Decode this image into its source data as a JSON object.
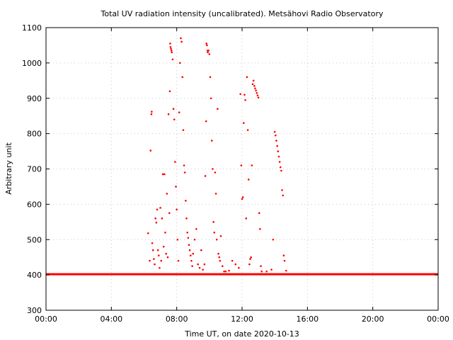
{
  "chart_data": {
    "type": "scatter",
    "title": "Total UV radiation intensity (uncalibrated). Metsähovi Radio Observatory",
    "xlabel": "Time UT, on date 2020-10-13",
    "ylabel": "Arbitrary unit",
    "xlim": [
      0,
      24
    ],
    "ylim": [
      300,
      1100
    ],
    "x_ticks": [
      0,
      4,
      8,
      12,
      16,
      20,
      24
    ],
    "x_tick_labels": [
      "00:00",
      "04:00",
      "08:00",
      "12:00",
      "16:00",
      "20:00",
      "00:00"
    ],
    "y_ticks": [
      300,
      400,
      500,
      600,
      700,
      800,
      900,
      1000,
      1100
    ],
    "y_tick_labels": [
      "300",
      "400",
      "500",
      "600",
      "700",
      "800",
      "900",
      "1000",
      "1100"
    ],
    "grid": true,
    "marker_color": "#ff0000",
    "baseline": {
      "value": 402,
      "x_start": 0,
      "x_end": 24
    },
    "series": [
      {
        "points": [
          [
            6.25,
            518
          ],
          [
            6.35,
            440
          ],
          [
            6.4,
            752
          ],
          [
            6.45,
            855
          ],
          [
            6.47,
            862
          ],
          [
            6.5,
            490
          ],
          [
            6.55,
            470
          ],
          [
            6.6,
            445
          ],
          [
            6.65,
            430
          ],
          [
            6.7,
            560
          ],
          [
            6.75,
            548
          ],
          [
            6.8,
            585
          ],
          [
            6.85,
            470
          ],
          [
            6.9,
            455
          ],
          [
            6.95,
            420
          ],
          [
            7.0,
            590
          ],
          [
            7.05,
            440
          ],
          [
            7.1,
            560
          ],
          [
            7.15,
            685
          ],
          [
            7.2,
            480
          ],
          [
            7.25,
            685
          ],
          [
            7.3,
            520
          ],
          [
            7.35,
            460
          ],
          [
            7.4,
            630
          ],
          [
            7.45,
            450
          ],
          [
            7.5,
            855
          ],
          [
            7.55,
            575
          ],
          [
            7.58,
            920
          ],
          [
            7.6,
            1055
          ],
          [
            7.62,
            1045
          ],
          [
            7.65,
            1040
          ],
          [
            7.68,
            1035
          ],
          [
            7.7,
            1030
          ],
          [
            7.75,
            1010
          ],
          [
            7.8,
            870
          ],
          [
            7.85,
            840
          ],
          [
            7.9,
            720
          ],
          [
            7.95,
            650
          ],
          [
            8.0,
            585
          ],
          [
            8.05,
            500
          ],
          [
            8.1,
            440
          ],
          [
            8.15,
            860
          ],
          [
            8.2,
            1000
          ],
          [
            8.25,
            1070
          ],
          [
            8.3,
            1060
          ],
          [
            8.35,
            960
          ],
          [
            8.4,
            810
          ],
          [
            8.45,
            710
          ],
          [
            8.5,
            690
          ],
          [
            8.55,
            610
          ],
          [
            8.6,
            560
          ],
          [
            8.65,
            520
          ],
          [
            8.7,
            505
          ],
          [
            8.75,
            485
          ],
          [
            8.8,
            470
          ],
          [
            8.85,
            455
          ],
          [
            8.9,
            440
          ],
          [
            8.95,
            425
          ],
          [
            9.0,
            460
          ],
          [
            9.1,
            500
          ],
          [
            9.2,
            530
          ],
          [
            9.3,
            430
          ],
          [
            9.4,
            420
          ],
          [
            9.5,
            470
          ],
          [
            9.6,
            415
          ],
          [
            9.7,
            430
          ],
          [
            9.75,
            680
          ],
          [
            9.8,
            835
          ],
          [
            9.82,
            1055
          ],
          [
            9.85,
            1050
          ],
          [
            9.88,
            1035
          ],
          [
            9.9,
            1030
          ],
          [
            9.95,
            1035
          ],
          [
            10.0,
            1025
          ],
          [
            10.05,
            960
          ],
          [
            10.1,
            900
          ],
          [
            10.15,
            780
          ],
          [
            10.2,
            700
          ],
          [
            10.25,
            550
          ],
          [
            10.3,
            520
          ],
          [
            10.35,
            690
          ],
          [
            10.4,
            630
          ],
          [
            10.45,
            500
          ],
          [
            10.5,
            870
          ],
          [
            10.55,
            460
          ],
          [
            10.6,
            450
          ],
          [
            10.65,
            440
          ],
          [
            10.7,
            510
          ],
          [
            10.8,
            425
          ],
          [
            10.9,
            410
          ],
          [
            11.0,
            410
          ],
          [
            11.2,
            412
          ],
          [
            11.4,
            440
          ],
          [
            11.6,
            430
          ],
          [
            11.8,
            420
          ],
          [
            11.9,
            912
          ],
          [
            11.95,
            710
          ],
          [
            12.0,
            615
          ],
          [
            12.05,
            620
          ],
          [
            12.1,
            830
          ],
          [
            12.15,
            910
          ],
          [
            12.2,
            895
          ],
          [
            12.25,
            560
          ],
          [
            12.3,
            960
          ],
          [
            12.35,
            810
          ],
          [
            12.4,
            670
          ],
          [
            12.45,
            430
          ],
          [
            12.5,
            445
          ],
          [
            12.55,
            450
          ],
          [
            12.6,
            710
          ],
          [
            12.65,
            940
          ],
          [
            12.7,
            950
          ],
          [
            12.75,
            935
          ],
          [
            12.8,
            928
          ],
          [
            12.85,
            922
          ],
          [
            12.9,
            915
          ],
          [
            12.95,
            908
          ],
          [
            13.0,
            902
          ],
          [
            13.05,
            575
          ],
          [
            13.1,
            530
          ],
          [
            13.15,
            425
          ],
          [
            13.2,
            410
          ],
          [
            13.5,
            410
          ],
          [
            13.8,
            415
          ],
          [
            13.9,
            500
          ],
          [
            14.0,
            805
          ],
          [
            14.05,
            795
          ],
          [
            14.1,
            780
          ],
          [
            14.15,
            765
          ],
          [
            14.2,
            750
          ],
          [
            14.25,
            735
          ],
          [
            14.3,
            720
          ],
          [
            14.35,
            705
          ],
          [
            14.4,
            695
          ],
          [
            14.45,
            640
          ],
          [
            14.5,
            625
          ],
          [
            14.55,
            455
          ],
          [
            14.6,
            440
          ],
          [
            14.7,
            412
          ]
        ]
      }
    ]
  }
}
